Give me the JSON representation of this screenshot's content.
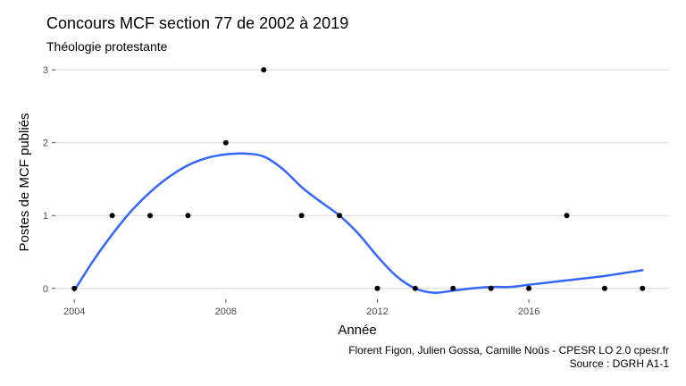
{
  "chart_data": {
    "type": "scatter",
    "title": "Concours MCF section 77 de 2002 à 2019",
    "subtitle": "Théologie protestante",
    "xlabel": "Année",
    "ylabel": "Postes de MCF publiés",
    "xlim": [
      2003.5,
      2019.7
    ],
    "ylim": [
      -0.15,
      3.1
    ],
    "x_ticks": [
      2004,
      2008,
      2012,
      2016
    ],
    "y_ticks": [
      0,
      1,
      2,
      3
    ],
    "grid": "horizontal",
    "points": [
      {
        "x": 2004,
        "y": 0
      },
      {
        "x": 2005,
        "y": 1
      },
      {
        "x": 2006,
        "y": 1
      },
      {
        "x": 2007,
        "y": 1
      },
      {
        "x": 2008,
        "y": 2
      },
      {
        "x": 2009,
        "y": 3
      },
      {
        "x": 2010,
        "y": 1
      },
      {
        "x": 2011,
        "y": 1
      },
      {
        "x": 2012,
        "y": 0
      },
      {
        "x": 2013,
        "y": 0
      },
      {
        "x": 2014,
        "y": 0
      },
      {
        "x": 2015,
        "y": 0
      },
      {
        "x": 2016,
        "y": 0
      },
      {
        "x": 2017,
        "y": 1
      },
      {
        "x": 2018,
        "y": 0
      },
      {
        "x": 2019,
        "y": 0
      }
    ],
    "smooth": {
      "color": "#3366ff",
      "x": [
        2004,
        2004.5,
        2005,
        2005.5,
        2006,
        2006.5,
        2007,
        2007.5,
        2008,
        2008.5,
        2009,
        2009.5,
        2010,
        2010.5,
        2011,
        2011.5,
        2012,
        2012.5,
        2013,
        2013.5,
        2014,
        2014.5,
        2015,
        2015.5,
        2016,
        2016.5,
        2017,
        2017.5,
        2018,
        2018.5,
        2019
      ],
      "y": [
        -0.03,
        0.38,
        0.74,
        1.06,
        1.32,
        1.53,
        1.69,
        1.79,
        1.84,
        1.85,
        1.81,
        1.64,
        1.39,
        1.19,
        1.0,
        0.75,
        0.44,
        0.17,
        0.0,
        -0.06,
        -0.03,
        0.0,
        0.02,
        0.02,
        0.05,
        0.08,
        0.11,
        0.14,
        0.17,
        0.21,
        0.25
      ]
    },
    "caption": [
      "Florent Figon, Julien Gossa, Camille Noûs - CPESR LO 2.0 cpesr.fr",
      "Source : DGRH A1-1"
    ]
  }
}
